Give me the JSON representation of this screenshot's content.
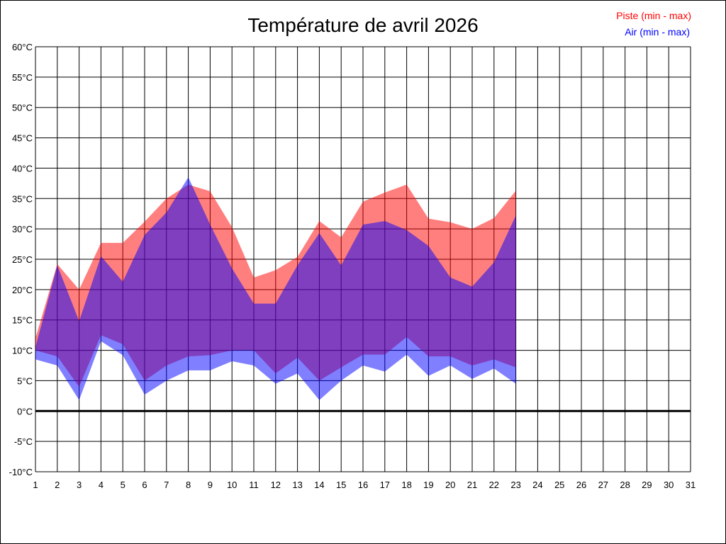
{
  "chart_data": {
    "type": "area",
    "title": "Température de avril 2026",
    "x_ticks": [
      "1",
      "2",
      "3",
      "4",
      "5",
      "6",
      "7",
      "8",
      "9",
      "10",
      "11",
      "12",
      "13",
      "14",
      "15",
      "16",
      "17",
      "18",
      "19",
      "20",
      "21",
      "22",
      "23",
      "24",
      "25",
      "26",
      "27",
      "28",
      "29",
      "30",
      "31"
    ],
    "y_ticks": [
      "60°C",
      "55°C",
      "50°C",
      "45°C",
      "40°C",
      "35°C",
      "30°C",
      "25°C",
      "20°C",
      "15°C",
      "10°C",
      "5°C",
      "0°C",
      "-5°C",
      "-10°C"
    ],
    "xlim": [
      1,
      31
    ],
    "ylim": [
      -10,
      60
    ],
    "grid": true,
    "legend_position": "top-right",
    "series": [
      {
        "name": "Piste (min - max)",
        "color": "#ff0000",
        "x": [
          1,
          2,
          3,
          4,
          5,
          6,
          7,
          8,
          9,
          10,
          11,
          12,
          13,
          14,
          15,
          16,
          17,
          18,
          19,
          20,
          21,
          22,
          23
        ],
        "min": [
          10,
          9,
          4,
          12.5,
          11,
          5,
          7.5,
          9,
          9.2,
          10,
          10,
          6.2,
          8.8,
          5,
          7.2,
          9.3,
          9.3,
          12.2,
          9,
          9,
          7.5,
          8.5,
          7.2
        ],
        "max": [
          12,
          24.2,
          20,
          27.7,
          27.7,
          31.2,
          35,
          37.3,
          36.2,
          30.3,
          22,
          23.2,
          25.4,
          31.3,
          28.6,
          34.5,
          36,
          37.3,
          31.7,
          31.1,
          30,
          31.8,
          36.3
        ]
      },
      {
        "name": "Air (min - max)",
        "color": "#0000ff",
        "x": [
          1,
          2,
          3,
          4,
          5,
          6,
          7,
          8,
          9,
          10,
          11,
          12,
          13,
          14,
          15,
          16,
          17,
          18,
          19,
          20,
          21,
          22,
          23
        ],
        "min": [
          8.5,
          7.5,
          1.8,
          11.5,
          9.2,
          2.7,
          5,
          6.7,
          6.7,
          8.2,
          7.5,
          4.5,
          6.2,
          1.8,
          5,
          7.5,
          6.5,
          9.3,
          5.8,
          7.5,
          5.3,
          7,
          4.5
        ],
        "max": [
          10.5,
          24,
          14.8,
          25.5,
          21.3,
          29,
          32.7,
          38.5,
          30.7,
          23.5,
          17.7,
          17.7,
          24,
          29.3,
          24,
          30.7,
          31.3,
          29.8,
          27.2,
          22,
          20.5,
          24.5,
          32.2
        ]
      }
    ]
  }
}
